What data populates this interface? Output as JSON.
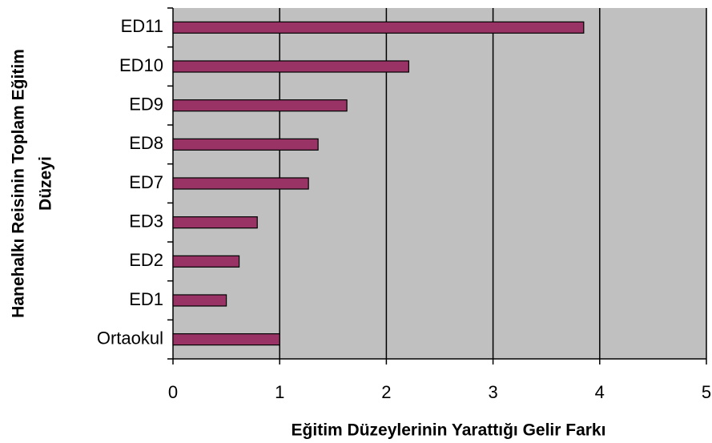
{
  "chart_data": {
    "type": "barh",
    "xlabel": "Eğitim Düzeylerinin Yarattığı Gelir Farkı",
    "ylabel": [
      "Hanehalkı Reisinin Toplam Eğitim",
      "Düzeyi"
    ],
    "categories": [
      "ED11",
      "ED10",
      "ED9",
      "ED8",
      "ED7",
      "ED3",
      "ED2",
      "ED1",
      "Ortaokul"
    ],
    "values": [
      3.85,
      2.21,
      1.63,
      1.36,
      1.27,
      0.79,
      0.62,
      0.5,
      1.0
    ],
    "color": "#993366",
    "xlim": [
      0,
      5
    ],
    "xticks": [
      0,
      1,
      2,
      3,
      4,
      5
    ],
    "grid": true
  }
}
